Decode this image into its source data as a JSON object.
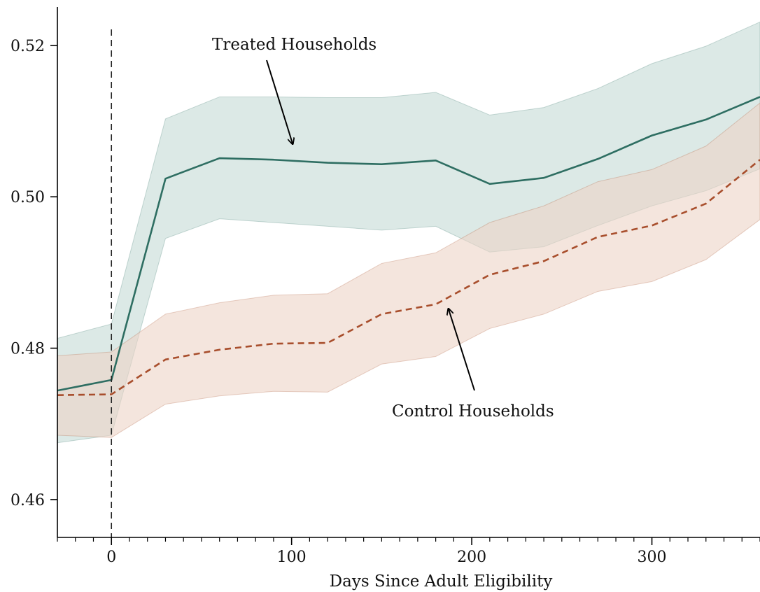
{
  "chart_data": {
    "type": "line",
    "title": "",
    "xlabel": "Days Since Adult Eligibility",
    "ylabel": "",
    "xlim": [
      -30,
      360
    ],
    "ylim": [
      0.455,
      0.526
    ],
    "x_ticks": [
      0,
      100,
      200,
      300
    ],
    "y_ticks": [
      0.46,
      0.48,
      0.5,
      0.52
    ],
    "y_tick_labels": [
      "0.46",
      "0.48",
      "0.50",
      "0.52"
    ],
    "reference_line_x": 0,
    "grid": false,
    "series": [
      {
        "name": "Treated Households",
        "color": "#2e6e62",
        "band_color": "#c5dad6",
        "line_style": "solid",
        "x": [
          -30,
          0,
          30,
          60,
          90,
          120,
          150,
          180,
          210,
          240,
          270,
          300,
          330,
          360
        ],
        "y": [
          0.4744,
          0.4758,
          0.5024,
          0.5051,
          0.5049,
          0.5045,
          0.5043,
          0.5048,
          0.5017,
          0.5025,
          0.505,
          0.5081,
          0.5102,
          0.5132
        ],
        "lower": [
          0.4675,
          0.4685,
          0.4945,
          0.4971,
          0.4966,
          0.4961,
          0.4956,
          0.4961,
          0.4927,
          0.4934,
          0.4962,
          0.4988,
          0.5008,
          0.5037
        ],
        "upper": [
          0.4813,
          0.4832,
          0.5103,
          0.5132,
          0.5132,
          0.5131,
          0.5131,
          0.5138,
          0.5108,
          0.5118,
          0.5143,
          0.5176,
          0.5199,
          0.5231
        ]
      },
      {
        "name": "Control Households",
        "color": "#a84e2c",
        "band_color": "#ecd3c6",
        "line_style": "dashed",
        "x": [
          -30,
          0,
          30,
          60,
          90,
          120,
          150,
          180,
          210,
          240,
          270,
          300,
          330,
          360
        ],
        "y": [
          0.4738,
          0.4739,
          0.4785,
          0.4798,
          0.4806,
          0.4807,
          0.4845,
          0.4858,
          0.4897,
          0.4915,
          0.4947,
          0.4962,
          0.4991,
          0.5049
        ],
        "lower": [
          0.4685,
          0.4682,
          0.4726,
          0.4737,
          0.4743,
          0.4742,
          0.4779,
          0.4789,
          0.4826,
          0.4845,
          0.4875,
          0.4888,
          0.4917,
          0.497
        ],
        "upper": [
          0.479,
          0.4795,
          0.4845,
          0.486,
          0.487,
          0.4872,
          0.4912,
          0.4926,
          0.4966,
          0.4988,
          0.502,
          0.5036,
          0.5067,
          0.5124
        ]
      }
    ],
    "annotations": [
      {
        "text": "Treated Households",
        "target_x": 100,
        "target_y": 0.5068
      },
      {
        "text": "Control Households",
        "target_x": 183,
        "target_y": 0.4858
      }
    ]
  }
}
